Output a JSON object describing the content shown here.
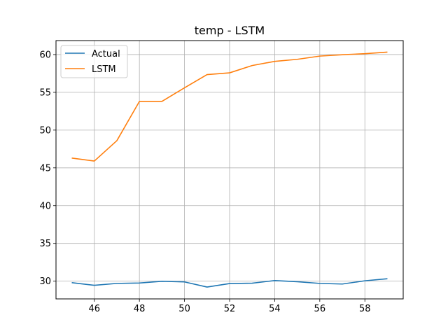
{
  "chart_data": {
    "type": "line",
    "title": "temp - LSTM",
    "xlabel": "",
    "ylabel": "",
    "xlim": [
      44.3,
      59.7
    ],
    "ylim": [
      27.65,
      61.85
    ],
    "xticks": [
      46,
      48,
      50,
      52,
      54,
      56,
      58
    ],
    "yticks": [
      30,
      35,
      40,
      45,
      50,
      55,
      60
    ],
    "grid": true,
    "legend_position": "top-left",
    "x": [
      45,
      46,
      47,
      48,
      49,
      50,
      51,
      52,
      53,
      54,
      55,
      56,
      57,
      58,
      59
    ],
    "series": [
      {
        "name": "Actual",
        "color": "#1f77b4",
        "values": [
          29.8,
          29.45,
          29.7,
          29.75,
          29.98,
          29.9,
          29.22,
          29.68,
          29.73,
          30.08,
          29.93,
          29.7,
          29.62,
          30.05,
          30.32
        ]
      },
      {
        "name": "LSTM",
        "color": "#ff7f0e",
        "values": [
          46.3,
          45.9,
          48.6,
          53.8,
          53.8,
          55.6,
          57.35,
          57.58,
          58.55,
          59.1,
          59.37,
          59.8,
          59.98,
          60.12,
          60.33
        ]
      }
    ]
  }
}
